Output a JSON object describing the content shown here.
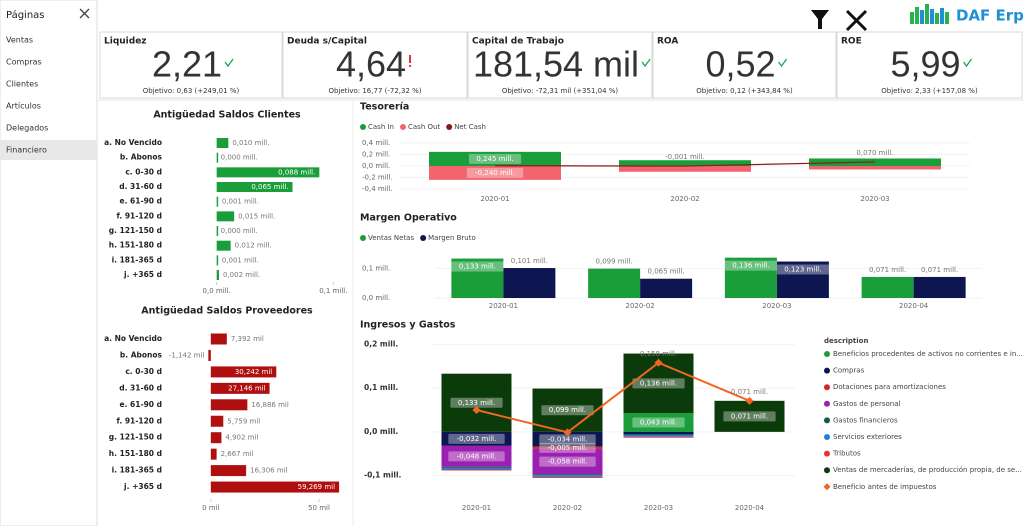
{
  "sidebar": {
    "title": "Páginas",
    "items": [
      "Ventas",
      "Compras",
      "Clientes",
      "Artículos",
      "Delegados",
      "Financiero"
    ],
    "active": 5
  },
  "logo": "DAF Erp",
  "kpis": [
    {
      "title": "Liquidez",
      "value": "2,21",
      "target": "Objetivo: 0,63 (+249,01 %)",
      "color": "#1aa84a",
      "status": "ok"
    },
    {
      "title": "Deuda s/Capital",
      "value": "4,64",
      "target": "Objetivo: 16,77 (-72,32 %)",
      "color": "#e0303a",
      "status": "alert"
    },
    {
      "title": "Capital de Trabajo",
      "value": "181,54 mil",
      "target": "Objetivo: -72,31 mil (+351,04 %)",
      "color": "#1aa84a",
      "status": "ok"
    },
    {
      "title": "ROA",
      "value": "0,52",
      "target": "Objetivo: 0,12 (+343,84 %)",
      "color": "#1aa84a",
      "status": "ok"
    },
    {
      "title": "ROE",
      "value": "5,99",
      "target": "Objetivo: 2,33 (+157,08 %)",
      "color": "#1aa84a",
      "status": "ok"
    }
  ],
  "chart_data": [
    {
      "type": "barh",
      "title": "Antigüedad Saldos Clientes",
      "color": "#1a9e3a",
      "categories": [
        "a. No Vencido",
        "b. Abonos",
        "c. 0-30 d",
        "d. 31-60 d",
        "e. 61-90 d",
        "f. 91-120 d",
        "g. 121-150 d",
        "h. 151-180 d",
        "i. 181-365 d",
        "j. +365 d"
      ],
      "values": [
        0.01,
        0.0,
        0.088,
        0.065,
        0.001,
        0.015,
        0.0,
        0.012,
        0.001,
        0.002
      ],
      "value_labels": [
        "0,010 mill.",
        "0,000 mill.",
        "0,088 mill.",
        "0,065 mill.",
        "0,001 mill.",
        "0,015 mill.",
        "0,000 mill.",
        "0,012 mill.",
        "0,001 mill.",
        "0,002 mill."
      ],
      "xlim": [
        -0.01,
        0.11
      ],
      "xticks": [
        {
          "value": 0,
          "label": "0,0 mill."
        },
        {
          "value": 0.1,
          "label": "0,1 mill."
        }
      ]
    },
    {
      "type": "barh",
      "title": "Antigüedad Saldos Proveedores",
      "color": "#b00f0f",
      "categories": [
        "a. No Vencido",
        "b. Abonos",
        "c. 0-30 d",
        "d. 31-60 d",
        "e. 61-90 d",
        "f. 91-120 d",
        "g. 121-150 d",
        "h. 151-180 d",
        "i. 181-365 d",
        "j. +365 d"
      ],
      "values": [
        7.392,
        -1.142,
        30.242,
        27.146,
        16.886,
        5.759,
        4.902,
        2.667,
        16.306,
        59.269
      ],
      "value_labels": [
        "7,392 mil",
        "-1,142 mil",
        "30,242 mil",
        "27,146 mil",
        "16,886 mil",
        "5,759 mil",
        "4,902 mil",
        "2,667 mil",
        "16,306 mil",
        "59,269 mil"
      ],
      "xlim": [
        -5,
        62
      ],
      "xticks": [
        {
          "value": 0,
          "label": "0 mil"
        },
        {
          "value": 50,
          "label": "50 mil"
        }
      ]
    },
    {
      "type": "stacked",
      "title": "Tesorería",
      "legend": "top",
      "categories": [
        "2020-01",
        "2020-02",
        "2020-03"
      ],
      "series": [
        {
          "name": "Cash In",
          "color": "#1a9e3a",
          "values": [
            0.245,
            0.1,
            0.13
          ],
          "value_labels": [
            "0,245 mill.",
            null,
            null
          ]
        },
        {
          "name": "Cash Out",
          "color": "#f2646e",
          "values": [
            -0.24,
            -0.1,
            -0.06
          ],
          "value_labels": [
            "-0,240 mill.",
            null,
            null
          ]
        },
        {
          "name": "Net Cash",
          "color": "#8b1a1a",
          "type": "line",
          "values": [
            0.005,
            -0.001,
            0.07
          ],
          "value_labels": [
            null,
            "-0,001 mill.",
            "0,070 mill."
          ]
        }
      ],
      "ylim": [
        -0.45,
        0.45
      ],
      "yticks": [
        {
          "value": 0.4,
          "label": "0,4 mill."
        },
        {
          "value": 0.2,
          "label": "0,2 mill."
        },
        {
          "value": 0,
          "label": "0,0 mill."
        },
        {
          "value": -0.2,
          "label": "-0,2 mill."
        },
        {
          "value": -0.4,
          "label": "-0,4 mill."
        }
      ]
    },
    {
      "type": "bar",
      "title": "Margen Operativo",
      "legend": "top",
      "categories": [
        "2020-01",
        "2020-02",
        "2020-03",
        "2020-04"
      ],
      "series": [
        {
          "name": "Ventas Netas",
          "color": "#1a9e3a",
          "values": [
            0.133,
            0.099,
            0.136,
            0.071
          ],
          "value_labels": [
            "0,133 mill.",
            "0,099 mill.",
            "0,136 mill.",
            "0,071 mill."
          ]
        },
        {
          "name": "Margen Bruto",
          "color": "#0d1650",
          "values": [
            0.101,
            0.065,
            0.123,
            0.071
          ],
          "value_labels": [
            "0,101 mill.",
            "0,065 mill.",
            "0,123 mill.",
            "0,071 mill."
          ]
        }
      ],
      "ylim": [
        0,
        0.145
      ],
      "yticks": [
        {
          "value": 0,
          "label": "0,0 mill."
        },
        {
          "value": 0.1,
          "label": "0,1 mill."
        }
      ]
    },
    {
      "type": "stacked",
      "title": "Ingresos y Gastos",
      "legend": "right",
      "legend_title": "description",
      "categories": [
        "2020-01",
        "2020-02",
        "2020-03",
        "2020-04"
      ],
      "series": [
        {
          "name": "Beneficios procedentes de activos no corrientes e in...",
          "color": "#1a9e3a",
          "values": [
            null,
            null,
            0.043,
            null
          ],
          "value_labels": [
            null,
            null,
            "0,043 mill.",
            null
          ]
        },
        {
          "name": "Compras",
          "color": "#0d1650",
          "values": [
            -0.032,
            -0.034,
            -0.005,
            null
          ],
          "value_labels": [
            "-0,032 mill.",
            "-0,034 mill.",
            null,
            null
          ]
        },
        {
          "name": "Dotaciones para amortizaciones",
          "color": "#d62728",
          "values": [
            null,
            -0.005,
            null,
            null
          ],
          "value_labels": [
            null,
            "-0,005 mill.",
            null,
            null
          ]
        },
        {
          "name": "Gastos de personal",
          "color": "#9b1fb0",
          "values": [
            -0.048,
            -0.058,
            null,
            null
          ],
          "value_labels": [
            "-0,048 mill.",
            "-0,058 mill.",
            null,
            null
          ]
        },
        {
          "name": "Gastos financieros",
          "color": "#0e5a4e",
          "values": [
            -0.002,
            -0.002,
            -0.002,
            null
          ]
        },
        {
          "name": "Servicios exteriores",
          "color": "#1f7fe0",
          "values": [
            -0.004,
            -0.004,
            -0.004,
            null
          ]
        },
        {
          "name": "Tributos",
          "color": "#e8333c",
          "values": [
            -0.001,
            -0.001,
            -0.001,
            null
          ]
        },
        {
          "name": "Ventas de mercaderías, de producción propia, de se...",
          "color": "#0b3b0b",
          "values": [
            0.133,
            0.099,
            0.136,
            0.071
          ],
          "value_labels": [
            "0,133 mill.",
            "0,099 mill.",
            "0,136 mill.",
            "0,071 mill."
          ]
        },
        {
          "name": "Beneficio antes de impuestos",
          "color": "#f26522",
          "type": "line",
          "marker": "diamond",
          "values": [
            0.05,
            -0.001,
            0.158,
            0.071
          ],
          "value_labels": [
            null,
            null,
            "0,158 mill.",
            "0,071 mill."
          ]
        }
      ],
      "ylim": [
        -0.11,
        0.21
      ],
      "yticks": [
        {
          "value": 0.2,
          "label": "0,2 mill."
        },
        {
          "value": 0.1,
          "label": "0,1 mill."
        },
        {
          "value": 0,
          "label": "0,0 mill."
        },
        {
          "value": -0.1,
          "label": "-0,1 mill."
        }
      ]
    }
  ]
}
